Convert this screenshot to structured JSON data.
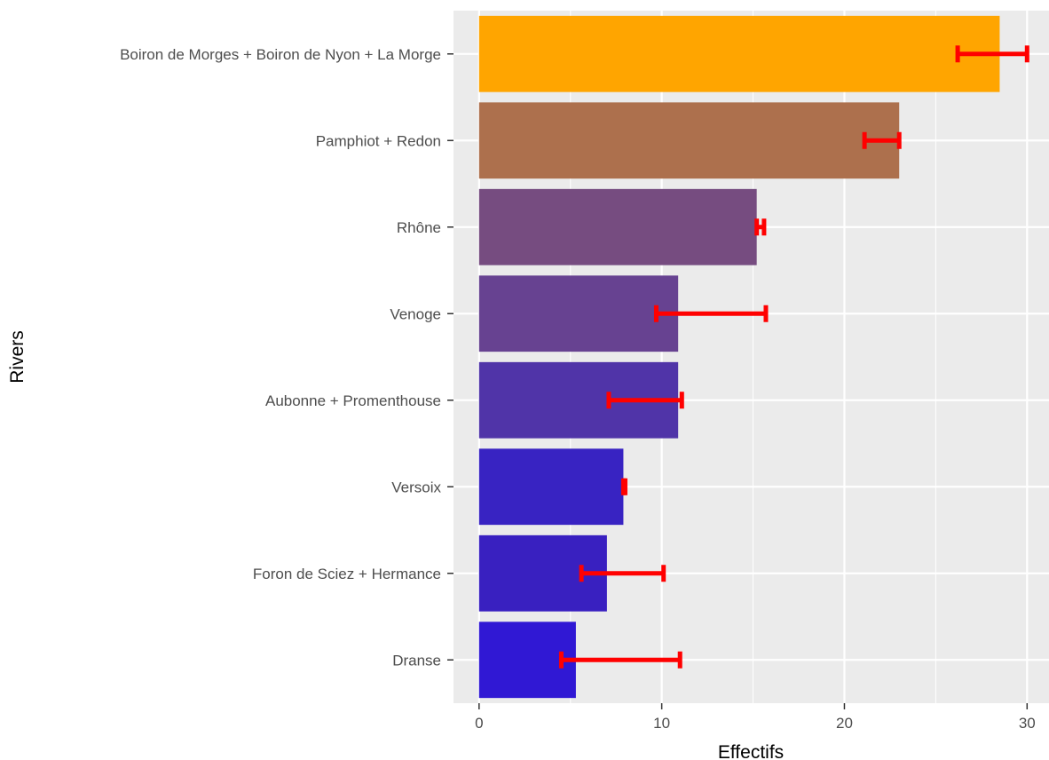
{
  "chart_data": {
    "type": "bar",
    "orientation": "horizontal",
    "title": "",
    "xlabel": "Effectifs",
    "ylabel": "Rivers",
    "xlim": [
      -1.4,
      31.2
    ],
    "x_ticks": [
      0,
      10,
      20,
      30
    ],
    "grid": true,
    "legend": "none",
    "panel_background": "#ebebeb",
    "gridline_color": "#ffffff",
    "errorbar_color": "#ff0000",
    "categories": [
      "Boiron de Morges + Boiron de Nyon + La Morge",
      "Pamphiot + Redon",
      "Rhône",
      "Venoge",
      "Aubonne + Promenthouse",
      "Versoix",
      "Foron de Sciez + Hermance",
      "Dranse"
    ],
    "values": [
      28.5,
      23.0,
      15.2,
      10.9,
      10.9,
      7.9,
      7.0,
      5.3
    ],
    "error_low": [
      26.2,
      21.1,
      15.2,
      9.7,
      7.1,
      7.9,
      5.6,
      4.5
    ],
    "error_high": [
      30.0,
      23.0,
      15.6,
      15.7,
      11.1,
      8.0,
      10.1,
      11.0
    ],
    "colors": [
      "#ffa500",
      "#ad704d",
      "#764c80",
      "#674291",
      "#5034a8",
      "#3823c2",
      "#3920c0",
      "#3018d4"
    ]
  }
}
